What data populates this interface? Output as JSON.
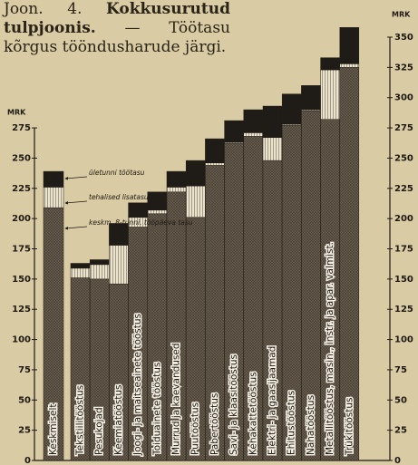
{
  "chart_data": {
    "type": "stacked_bar",
    "title_prefix": "Joon. 4.",
    "title": "Kokkusurutud tulpjoonis.",
    "subtitle": "— Töötasu kõrgus tööndusharude järgi.",
    "ylabel": "MRK",
    "y2label": "MRK",
    "categories": [
      "Keskmiselt",
      "Tekstiilitööstus",
      "Pesukojad",
      "Keemiatööstus",
      "Joogi- ja maitseainete tööstus",
      "Toiduainete tööstus",
      "Murrud ja kaevandused",
      "Puutööstus",
      "Pabertööstus",
      "Savi- ja klaasitööstus",
      "Kehakattetööstus",
      "Elektri- ja gaasijaamad",
      "Ehitustööstus",
      "Nahatööstus",
      "Metallitööstus, masin., instr. ja apar. valmist.",
      "Trükitööstus"
    ],
    "series": [
      {
        "name": "keskm. 8-tunni. tööpäeva tasu",
        "color": "#6b6050",
        "values": [
          209,
          151,
          150,
          146,
          193,
          204,
          222,
          201,
          244,
          262,
          268,
          248,
          277,
          289,
          282,
          325
        ]
      },
      {
        "name": "tehalised lisatasud",
        "color": "#ece3cc",
        "values": [
          17,
          8,
          12,
          32,
          8,
          3,
          4,
          26,
          2,
          1,
          3,
          19,
          1,
          1,
          41,
          3
        ]
      },
      {
        "name": "ületunni töötasu",
        "color": "#1f1b17",
        "values": [
          13,
          4,
          4,
          18,
          12,
          15,
          13,
          21,
          20,
          18,
          19,
          26,
          25,
          20,
          10,
          30
        ]
      }
    ],
    "ylim": [
      0,
      362
    ],
    "yticks": [
      0,
      25,
      50,
      75,
      100,
      125,
      150,
      175,
      200,
      225,
      250,
      275
    ],
    "y2lim": [
      0,
      362
    ],
    "y2ticks": [
      0,
      25,
      50,
      75,
      100,
      125,
      150,
      175,
      200,
      225,
      250,
      275,
      300,
      325,
      350
    ]
  }
}
